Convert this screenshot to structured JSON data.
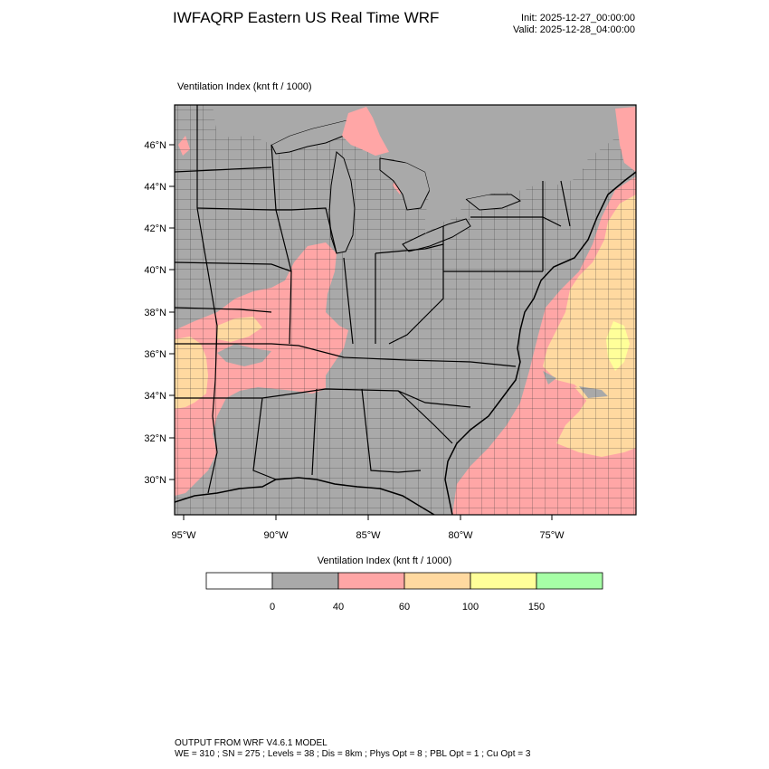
{
  "header": {
    "title": "IWFAQRP Eastern US Real Time WRF",
    "init": "Init: 2025-12-27_00:00:00",
    "valid": "Valid: 2025-12-28_04:00:00"
  },
  "map": {
    "variable_label": "Ventilation Index   (knt ft / 1000)",
    "lat_labels": [
      "46°N",
      "44°N",
      "42°N",
      "40°N",
      "38°N",
      "36°N",
      "34°N",
      "32°N",
      "30°N"
    ],
    "lon_labels": [
      "95°W",
      "90°W",
      "85°W",
      "80°W",
      "75°W"
    ]
  },
  "colorbar": {
    "title": "Ventilation Index  (knt ft / 1000)",
    "colors": [
      "#ffffff",
      "#a9a9a9",
      "#ffa6a6",
      "#ffd9a0",
      "#ffff99",
      "#a6ffa6"
    ],
    "tick_labels": [
      "0",
      "40",
      "60",
      "100",
      "150"
    ]
  },
  "footer": {
    "line1": "OUTPUT FROM WRF V4.6.1 MODEL",
    "line2": "WE = 310 ; SN = 275 ; Levels = 38 ; Dis = 8km ; Phys Opt = 8 ; PBL Opt = 1 ; Cu Opt = 3"
  }
}
